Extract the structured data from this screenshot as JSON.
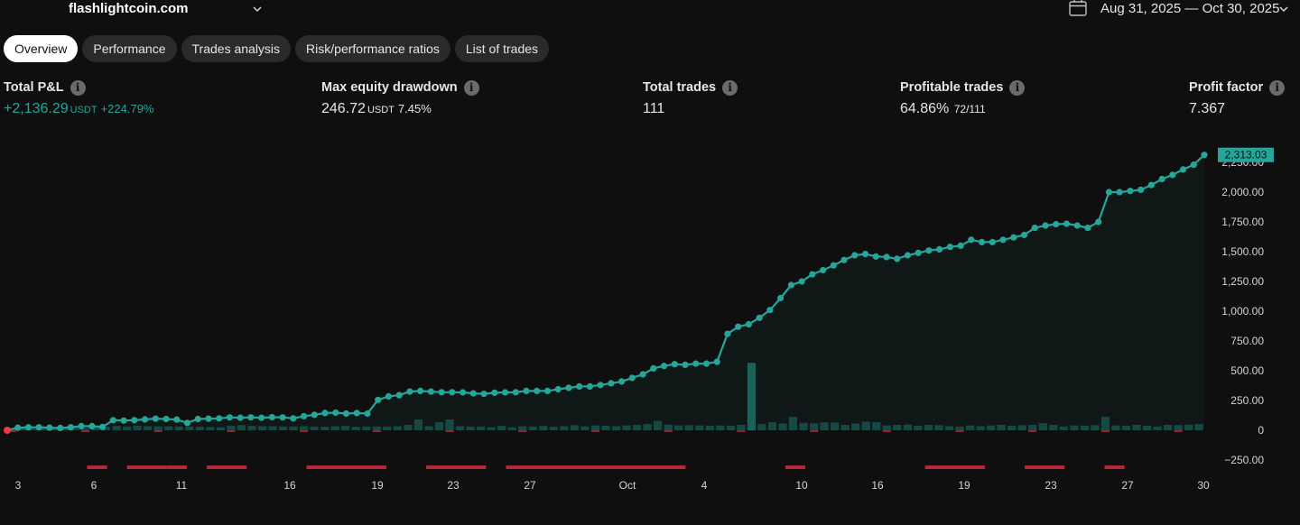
{
  "header": {
    "account_name": "flashlightcoin.com",
    "date_range": "Aug 31, 2025 — Oct 30, 2025"
  },
  "tabs": [
    {
      "label": "Overview",
      "active": true
    },
    {
      "label": "Performance",
      "active": false
    },
    {
      "label": "Trades analysis",
      "active": false
    },
    {
      "label": "Risk/performance ratios",
      "active": false
    },
    {
      "label": "List of trades",
      "active": false
    }
  ],
  "stats": {
    "total_pnl": {
      "label": "Total P&L",
      "value": "+2,136.29",
      "unit": "USDT",
      "percent": "+224.79%"
    },
    "max_drawdown": {
      "label": "Max equity drawdown",
      "value": "246.72",
      "unit": "USDT",
      "percent": "7.45%"
    },
    "total_trades": {
      "label": "Total trades",
      "value": "111"
    },
    "profitable_trades": {
      "label": "Profitable trades",
      "value": "64.86%",
      "sub": "72/111"
    },
    "profit_factor": {
      "label": "Profit factor",
      "value": "7.367"
    }
  },
  "colors": {
    "positive": "#26a69a",
    "negative": "#b2283a",
    "background": "#0f0f0f",
    "tab_bg": "#2a2a2a",
    "tab_active_bg": "#ffffff"
  },
  "chart_data": {
    "type": "line",
    "series": [
      {
        "values": [
          0,
          22,
          25,
          25,
          22,
          20,
          25,
          35,
          35,
          28,
          85,
          82,
          85,
          92,
          98,
          95,
          90,
          62,
          95,
          98,
          100,
          108,
          105,
          108,
          105,
          110,
          108,
          100,
          118,
          130,
          145,
          148,
          140,
          145,
          140,
          255,
          285,
          295,
          325,
          330,
          325,
          320,
          320,
          318,
          310,
          306,
          315,
          318,
          320,
          330,
          330,
          330,
          345,
          357,
          368,
          368,
          380,
          395,
          410,
          440,
          470,
          520,
          540,
          555,
          550,
          560,
          560,
          575,
          810,
          870,
          890,
          945,
          1010,
          1110,
          1220,
          1250,
          1310,
          1345,
          1385,
          1430,
          1470,
          1480,
          1460,
          1455,
          1440,
          1470,
          1490,
          1510,
          1520,
          1540,
          1550,
          1600,
          1580,
          1580,
          1600,
          1620,
          1640,
          1700,
          1720,
          1730,
          1735,
          1720,
          1700,
          1750,
          2000,
          2000,
          2010,
          2020,
          2060,
          2110,
          2145,
          2190,
          2230,
          2313.03
        ]
      }
    ],
    "y_ticks": [
      "2,250.00",
      "2,000.00",
      "1,750.00",
      "1,500.00",
      "1,250.00",
      "1,000.00",
      "750.00",
      "500.00",
      "250.00",
      "0",
      "−250.00"
    ],
    "ylim": [
      -250,
      2313
    ],
    "x_ticks": [
      "3",
      "6",
      "11",
      "16",
      "19",
      "23",
      "27",
      "Oct",
      "4",
      "10",
      "16",
      "19",
      "23",
      "27",
      "30"
    ],
    "last_value_label": "2,313.03",
    "bars": {
      "values": [
        15,
        15,
        16,
        14,
        12,
        18,
        19,
        18,
        20,
        26,
        32,
        28,
        34,
        30,
        30,
        30,
        28,
        28,
        26,
        24,
        22,
        34,
        38,
        32,
        30,
        30,
        28,
        28,
        30,
        28,
        26,
        30,
        32,
        26,
        28,
        28,
        28,
        30,
        40,
        80,
        30,
        60,
        80,
        30,
        28,
        28,
        22,
        32,
        22,
        30,
        28,
        32,
        26,
        30,
        38,
        30,
        36,
        34,
        30,
        36,
        40,
        46,
        70,
        42,
        36,
        38,
        36,
        34,
        36,
        34,
        40,
        500,
        46,
        60,
        50,
        100,
        55,
        52,
        58,
        58,
        40,
        50,
        64,
        60,
        36,
        40,
        42,
        34,
        40,
        38,
        30,
        28,
        36,
        30,
        36,
        40,
        34,
        38,
        40,
        52,
        40,
        28,
        36,
        34,
        38,
        100,
        36,
        34,
        40,
        34,
        28,
        40,
        38,
        42,
        46
      ],
      "negative_segments": [
        [
          4,
          5
        ],
        [
          6,
          8
        ],
        [
          8,
          9
        ],
        [
          10,
          12
        ],
        [
          15,
          19
        ],
        [
          21,
          24
        ],
        [
          25,
          34
        ],
        [
          39,
          40
        ],
        [
          46,
          49
        ],
        [
          51,
          53
        ],
        [
          55,
          56
        ]
      ]
    }
  }
}
